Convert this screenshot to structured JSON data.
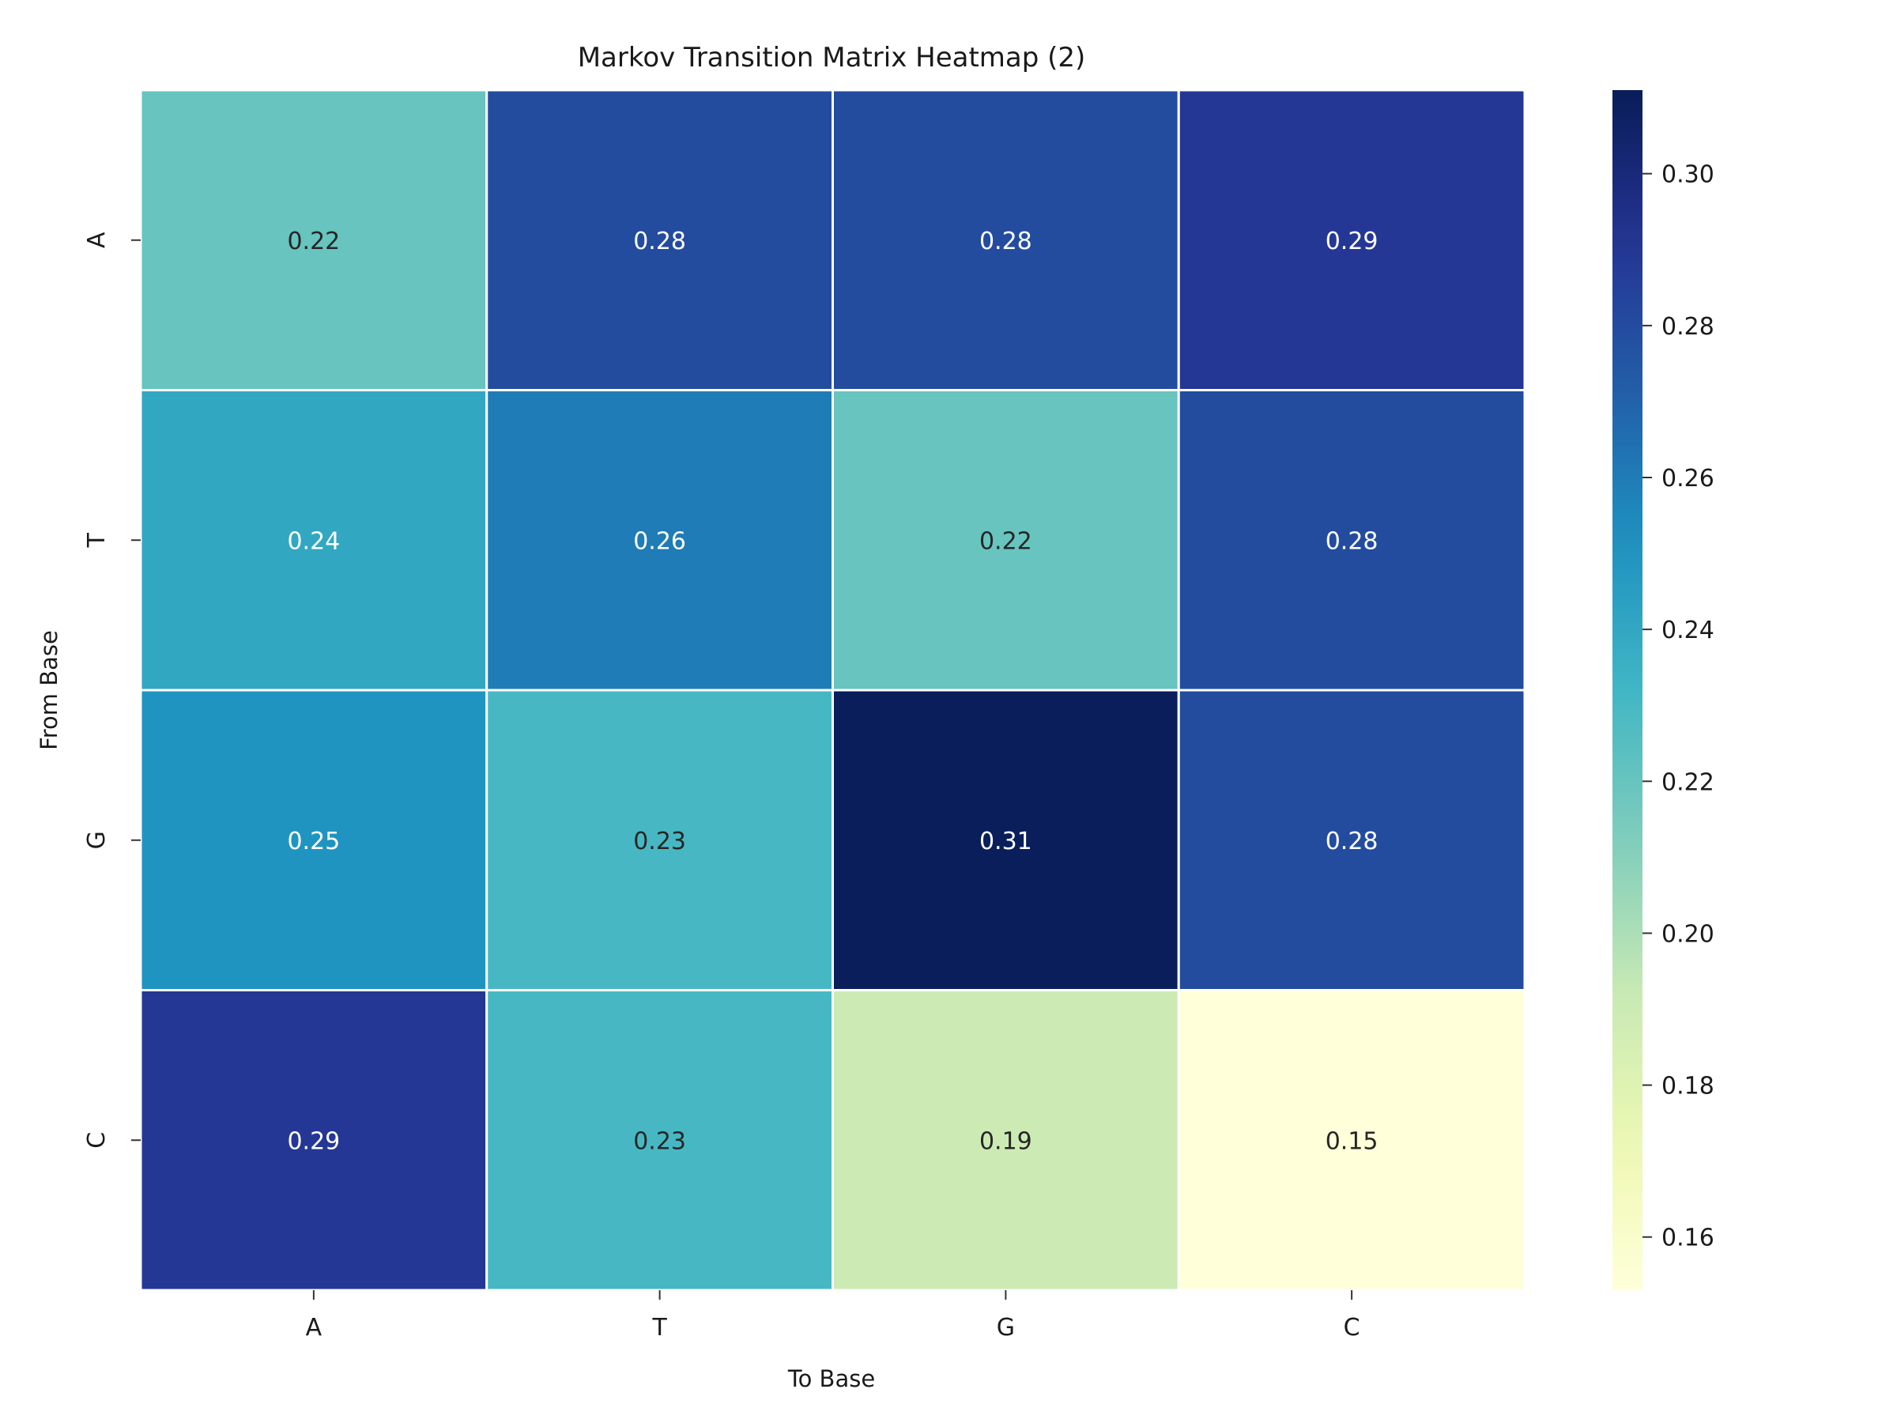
{
  "chart_data": {
    "type": "heatmap",
    "title": "Markov Transition Matrix Heatmap (2)",
    "xlabel": "To Base",
    "ylabel": "From Base",
    "x_categories": [
      "A",
      "T",
      "G",
      "C"
    ],
    "y_categories": [
      "A",
      "T",
      "G",
      "C"
    ],
    "values": [
      [
        0.22,
        0.28,
        0.28,
        0.29
      ],
      [
        0.24,
        0.26,
        0.22,
        0.28
      ],
      [
        0.25,
        0.23,
        0.31,
        0.28
      ],
      [
        0.29,
        0.23,
        0.19,
        0.15
      ]
    ],
    "colormap": "YlGnBu",
    "color_range": [
      0.153,
      0.311
    ],
    "colorbar_ticks": [
      "0.16",
      "0.18",
      "0.20",
      "0.22",
      "0.24",
      "0.26",
      "0.28",
      "0.30"
    ],
    "annotation_format": "0.00",
    "grid": false,
    "cell_separator_color": "#ffffff"
  }
}
